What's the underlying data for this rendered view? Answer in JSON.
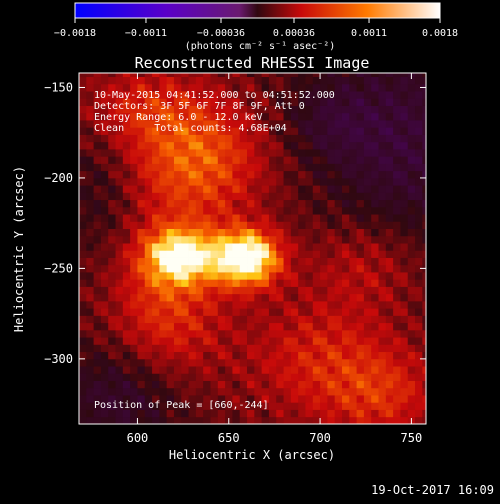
{
  "chart_data": {
    "type": "heatmap",
    "title": "Reconstructed RHESSI Image",
    "xlabel": "Heliocentric X (arcsec)",
    "ylabel": "Heliocentric Y (arcsec)",
    "xlim": [
      568,
      758
    ],
    "ylim": [
      -336,
      -142
    ],
    "x_ticks": [
      600,
      650,
      700,
      750
    ],
    "y_ticks": [
      -150,
      -200,
      -250,
      -300
    ],
    "x_tick_labels": [
      "600",
      "650",
      "700",
      "750"
    ],
    "y_tick_labels": [
      "−150",
      "−200",
      "−250",
      "−300"
    ],
    "colorbar": {
      "range": [
        -0.0018,
        0.0018
      ],
      "ticks": [
        -0.0018,
        -0.0011,
        -0.00036,
        0.00036,
        0.0011,
        0.0018
      ],
      "tick_labels": [
        "−0.0018",
        "−0.0011",
        "−0.00036",
        "0.00036",
        "0.0011",
        "0.0018"
      ],
      "unit_label": "(photons cm⁻² s⁻¹ asec⁻²)"
    },
    "annotations": [
      "10‑May‑2015 04:41:52.000 to 04:51:52.000",
      "Detectors: 3F 5F 6F 7F 8F 9F, Att 0",
      "Energy Range: 6.0 ‑ 12.0 keV",
      "Clean     Total counts: 4.68E+04"
    ],
    "peak_label": "Position of Peak = [660,‑244]",
    "peak": [
      660,
      -244
    ],
    "sources": [
      {
        "x": 660,
        "y": -244,
        "sx": 13,
        "sy": 11,
        "amp": 1.0
      },
      {
        "x": 623,
        "y": -243,
        "sx": 14,
        "sy": 11,
        "amp": 0.75
      },
      {
        "x": 632,
        "y": -190,
        "sx": 26,
        "sy": 24,
        "amp": 0.5
      },
      {
        "x": 616,
        "y": -272,
        "sx": 22,
        "sy": 30,
        "amp": 0.38
      },
      {
        "x": 700,
        "y": -300,
        "sx": 30,
        "sy": 24,
        "amp": 0.3
      },
      {
        "x": 735,
        "y": -320,
        "sx": 22,
        "sy": 18,
        "amp": 0.28
      },
      {
        "x": 725,
        "y": -248,
        "sx": 22,
        "sy": 18,
        "amp": 0.22
      },
      {
        "x": 600,
        "y": -160,
        "sx": 24,
        "sy": 16,
        "amp": 0.25
      }
    ],
    "negative_regions": [
      {
        "x": 592,
        "y": -320,
        "sx": 24,
        "sy": 20,
        "amp": 0.28
      },
      {
        "x": 745,
        "y": -180,
        "sx": 30,
        "sy": 40,
        "amp": 0.3
      },
      {
        "x": 705,
        "y": -168,
        "sx": 18,
        "sy": 16,
        "amp": 0.18
      },
      {
        "x": 580,
        "y": -205,
        "sx": 14,
        "sy": 26,
        "amp": 0.14
      }
    ]
  },
  "timestamp": "19‑Oct‑2017 16:09"
}
